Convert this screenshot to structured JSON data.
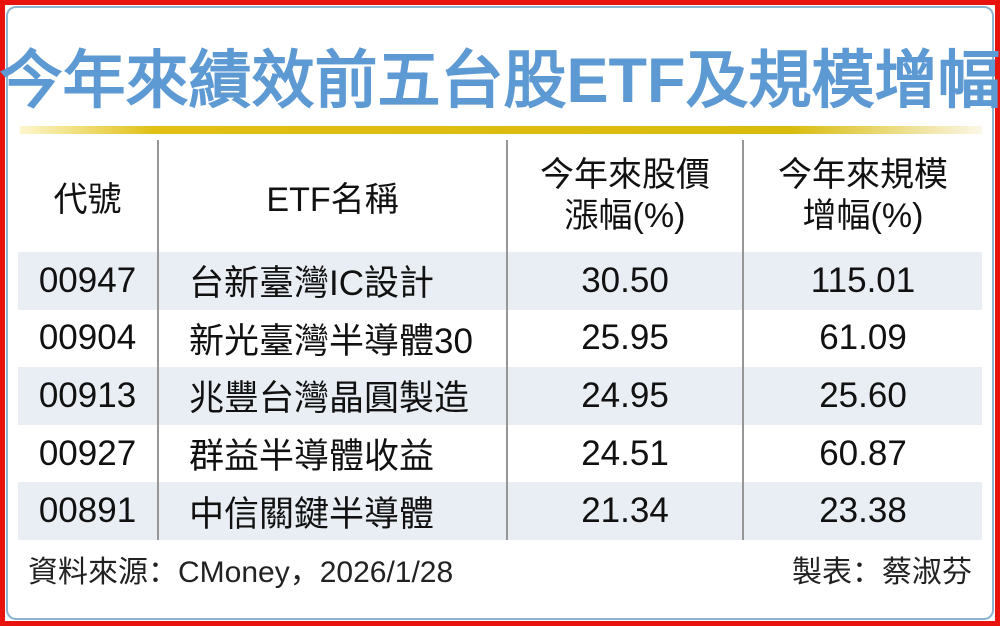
{
  "title": "今年來績效前五台股ETF及規模增幅",
  "table": {
    "headers": {
      "col1": "代號",
      "col2": "ETF名稱",
      "col3_line1": "今年來股價",
      "col3_line2": "漲幅(%)",
      "col4_line1": "今年來規模",
      "col4_line2": "增幅(%)"
    },
    "rows": [
      {
        "code": "00947",
        "name": "台新臺灣IC設計",
        "price": "30.50",
        "scale": "115.01"
      },
      {
        "code": "00904",
        "name": "新光臺灣半導體30",
        "price": "25.95",
        "scale": "61.09"
      },
      {
        "code": "00913",
        "name": "兆豐台灣晶圓製造",
        "price": "24.95",
        "scale": "25.60"
      },
      {
        "code": "00927",
        "name": "群益半導體收益",
        "price": "24.51",
        "scale": "60.87"
      },
      {
        "code": "00891",
        "name": "中信關鍵半導體",
        "price": "21.34",
        "scale": "23.38"
      }
    ]
  },
  "footer": {
    "source": "資料來源：CMoney，2026/1/28",
    "credit": "製表：蔡淑芬"
  },
  "colors": {
    "title_blue": "#5d99d2",
    "accent_gold": "#d9bb0c",
    "border_red": "#e8120f",
    "border_blue": "#8fb2d0",
    "row_shade": "#e9eef5",
    "divider_gray": "#969696"
  },
  "chart_data": {
    "type": "table",
    "title": "今年來績效前五台股ETF及規模增幅",
    "columns": [
      "代號",
      "ETF名稱",
      "今年來股價漲幅(%)",
      "今年來規模增幅(%)"
    ],
    "rows": [
      [
        "00947",
        "台新臺灣IC設計",
        30.5,
        115.01
      ],
      [
        "00904",
        "新光臺灣半導體30",
        25.95,
        61.09
      ],
      [
        "00913",
        "兆豐台灣晶圓製造",
        24.95,
        25.6
      ],
      [
        "00927",
        "群益半導體收益",
        24.51,
        60.87
      ],
      [
        "00891",
        "中信關鍵半導體",
        21.34,
        23.38
      ]
    ],
    "source": "資料來源：CMoney，2026/1/28",
    "credit": "製表：蔡淑芬"
  }
}
